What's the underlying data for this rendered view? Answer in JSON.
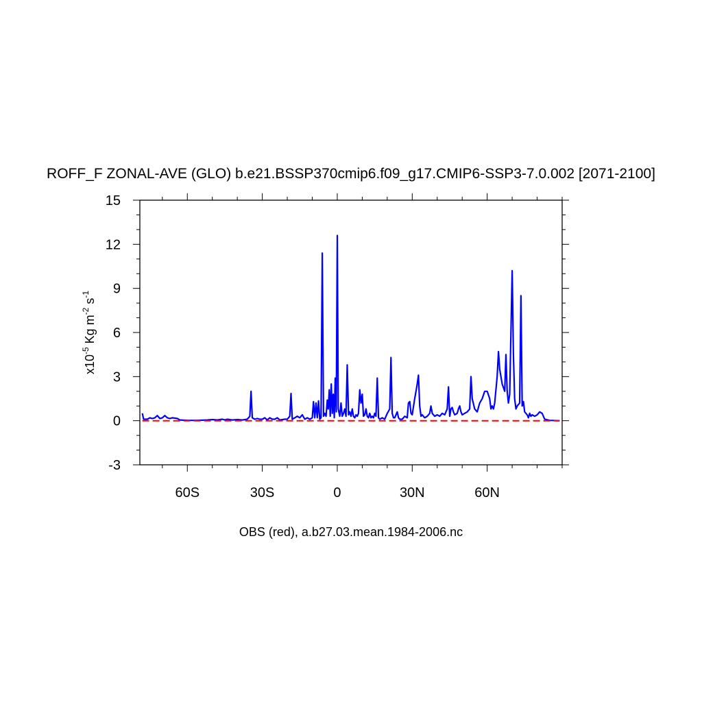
{
  "chart_data": {
    "type": "line",
    "title": "ROFF_F ZONAL-AVE (GLO) b.e21.BSSP370cmip6.f09_g17.CMIP6-SSP3-7.0.002 [2071-2100]",
    "caption": "OBS (red), a.b27.03.mean.1984-2006.nc",
    "ylabel": {
      "prefix": "x10",
      "exp1": "-5",
      "mid": " Kg m",
      "exp2": "-2",
      "mid2": " s",
      "exp3": "-1"
    },
    "xlim": [
      -79,
      90
    ],
    "ylim": [
      -3,
      15
    ],
    "y_ticks": [
      {
        "value": -3,
        "label": "-3"
      },
      {
        "value": 0,
        "label": "0"
      },
      {
        "value": 3,
        "label": "3"
      },
      {
        "value": 6,
        "label": "6"
      },
      {
        "value": 9,
        "label": "9"
      },
      {
        "value": 12,
        "label": "12"
      },
      {
        "value": 15,
        "label": "15"
      }
    ],
    "x_ticks": [
      {
        "value": -60,
        "label": "60S"
      },
      {
        "value": -30,
        "label": "30S"
      },
      {
        "value": 0,
        "label": "0"
      },
      {
        "value": 30,
        "label": "30N"
      },
      {
        "value": 60,
        "label": "60N"
      }
    ],
    "grid": false,
    "legend": "none",
    "series": [
      {
        "color": "#0000ff",
        "dash": false,
        "points": [
          [
            -78,
            0.5
          ],
          [
            -77.5,
            0.1
          ],
          [
            -76,
            0.1
          ],
          [
            -75,
            0.2
          ],
          [
            -74,
            0.15
          ],
          [
            -73,
            0.2
          ],
          [
            -72,
            0.35
          ],
          [
            -71,
            0.15
          ],
          [
            -70,
            0.2
          ],
          [
            -69,
            0.35
          ],
          [
            -68,
            0.2
          ],
          [
            -67,
            0.15
          ],
          [
            -66,
            0.2
          ],
          [
            -64,
            0.15
          ],
          [
            -63,
            0.05
          ],
          [
            -60,
            0.02
          ],
          [
            -56,
            0.02
          ],
          [
            -52,
            0.05
          ],
          [
            -50,
            0.08
          ],
          [
            -48,
            0.05
          ],
          [
            -46,
            0.1
          ],
          [
            -45,
            0.05
          ],
          [
            -44,
            0.1
          ],
          [
            -42,
            0.05
          ],
          [
            -40,
            0.08
          ],
          [
            -38,
            0.05
          ],
          [
            -36,
            0.1
          ],
          [
            -35,
            0.3
          ],
          [
            -34.5,
            2.0
          ],
          [
            -34,
            0.2
          ],
          [
            -33,
            0.1
          ],
          [
            -32,
            0.15
          ],
          [
            -31,
            0.1
          ],
          [
            -30,
            0.1
          ],
          [
            -29,
            0.2
          ],
          [
            -28,
            0.05
          ],
          [
            -27,
            0.2
          ],
          [
            -26,
            0.1
          ],
          [
            -25,
            0.1
          ],
          [
            -24,
            0.2
          ],
          [
            -23,
            0.05
          ],
          [
            -21,
            0.1
          ],
          [
            -20,
            0.1
          ],
          [
            -19,
            0.3
          ],
          [
            -18.5,
            1.85
          ],
          [
            -18,
            0.1
          ],
          [
            -17,
            0.2
          ],
          [
            -16,
            0.3
          ],
          [
            -15,
            0.2
          ],
          [
            -14,
            0.4
          ],
          [
            -13,
            0.1
          ],
          [
            -12,
            0.2
          ],
          [
            -11,
            0.1
          ],
          [
            -10,
            0.2
          ],
          [
            -9.5,
            1.3
          ],
          [
            -9,
            0.2
          ],
          [
            -8.5,
            1.2
          ],
          [
            -8,
            0.2
          ],
          [
            -7.5,
            1.35
          ],
          [
            -7,
            0.1
          ],
          [
            -6.5,
            0.2
          ],
          [
            -6,
            11.4
          ],
          [
            -5.5,
            0.3
          ],
          [
            -5,
            0.5
          ],
          [
            -4.5,
            0.3
          ],
          [
            -4,
            1.4
          ],
          [
            -3.6,
            0.8
          ],
          [
            -3.2,
            2.1
          ],
          [
            -2.8,
            0.3
          ],
          [
            -2.4,
            2.5
          ],
          [
            -2,
            0.5
          ],
          [
            -1.6,
            1.8
          ],
          [
            -1.2,
            0.2
          ],
          [
            -0.8,
            2.9
          ],
          [
            -0.4,
            0.6
          ],
          [
            0,
            12.6
          ],
          [
            0.4,
            0.8
          ],
          [
            1,
            0.3
          ],
          [
            1.5,
            1.2
          ],
          [
            2,
            0.3
          ],
          [
            2.5,
            0.5
          ],
          [
            3,
            0.8
          ],
          [
            3.5,
            0.3
          ],
          [
            4,
            3.8
          ],
          [
            4.5,
            0.4
          ],
          [
            5,
            0.6
          ],
          [
            5.5,
            0.3
          ],
          [
            6,
            0.8
          ],
          [
            6.5,
            0.3
          ],
          [
            7,
            0.2
          ],
          [
            7.5,
            0.4
          ],
          [
            8,
            0.3
          ],
          [
            8.5,
            0.5
          ],
          [
            9,
            2.1
          ],
          [
            9.5,
            1.2
          ],
          [
            10,
            1.8
          ],
          [
            10.5,
            0.3
          ],
          [
            11,
            0.4
          ],
          [
            11.5,
            0.8
          ],
          [
            12,
            0.3
          ],
          [
            12.5,
            0.2
          ],
          [
            13,
            0.5
          ],
          [
            13.5,
            0.2
          ],
          [
            14,
            0.3
          ],
          [
            14.5,
            0.2
          ],
          [
            15,
            0.5
          ],
          [
            15.5,
            0.3
          ],
          [
            16,
            2.9
          ],
          [
            16.5,
            0.2
          ],
          [
            17,
            0.1
          ],
          [
            18,
            0.2
          ],
          [
            19,
            0.1
          ],
          [
            20,
            0.5
          ],
          [
            21,
            0.8
          ],
          [
            21.5,
            4.3
          ],
          [
            22,
            0.5
          ],
          [
            22.5,
            0.2
          ],
          [
            23,
            0.2
          ],
          [
            24,
            0.6
          ],
          [
            24.5,
            0.2
          ],
          [
            25,
            0.1
          ],
          [
            26,
            0.1
          ],
          [
            27,
            0.3
          ],
          [
            28,
            0.2
          ],
          [
            28.5,
            1.2
          ],
          [
            29,
            1.3
          ],
          [
            29.5,
            0.5
          ],
          [
            30,
            0.4
          ],
          [
            31,
            1.5
          ],
          [
            31.5,
            2.0
          ],
          [
            32,
            2.5
          ],
          [
            32.5,
            3.1
          ],
          [
            33,
            1.0
          ],
          [
            33.5,
            0.3
          ],
          [
            34,
            0.4
          ],
          [
            35,
            0.2
          ],
          [
            36,
            0.3
          ],
          [
            37,
            0.5
          ],
          [
            37.5,
            1.0
          ],
          [
            38,
            0.5
          ],
          [
            39,
            0.3
          ],
          [
            40,
            0.4
          ],
          [
            41,
            0.3
          ],
          [
            42,
            0.5
          ],
          [
            43,
            0.4
          ],
          [
            44,
            0.8
          ],
          [
            44.5,
            2.3
          ],
          [
            45,
            0.3
          ],
          [
            45.5,
            0.8
          ],
          [
            46,
            0.9
          ],
          [
            46.5,
            0.6
          ],
          [
            47,
            0.4
          ],
          [
            48,
            0.5
          ],
          [
            48.5,
            0.8
          ],
          [
            49,
            1.0
          ],
          [
            49.5,
            0.6
          ],
          [
            50,
            0.4
          ],
          [
            51,
            0.5
          ],
          [
            52,
            0.6
          ],
          [
            53,
            0.8
          ],
          [
            53.5,
            3.0
          ],
          [
            54,
            1.5
          ],
          [
            55,
            0.8
          ],
          [
            56,
            0.6
          ],
          [
            57,
            1.2
          ],
          [
            58,
            1.5
          ],
          [
            59,
            2.0
          ],
          [
            60,
            2.0
          ],
          [
            61,
            1.5
          ],
          [
            61.5,
            0.8
          ],
          [
            62,
            1.0
          ],
          [
            62.5,
            0.8
          ],
          [
            63,
            1.2
          ],
          [
            64,
            3.0
          ],
          [
            64.5,
            4.7
          ],
          [
            65,
            3.5
          ],
          [
            66,
            2.5
          ],
          [
            67,
            2.0
          ],
          [
            67.5,
            4.5
          ],
          [
            68,
            2.0
          ],
          [
            68.5,
            1.2
          ],
          [
            69,
            1.8
          ],
          [
            70,
            10.2
          ],
          [
            70.5,
            4.5
          ],
          [
            71,
            1.5
          ],
          [
            71.5,
            0.8
          ],
          [
            72,
            1.0
          ],
          [
            73,
            1.2
          ],
          [
            73.5,
            8.5
          ],
          [
            74,
            1.0
          ],
          [
            74.5,
            1.3
          ],
          [
            75,
            0.6
          ],
          [
            76,
            0.4
          ],
          [
            76.5,
            0.2
          ],
          [
            77,
            0.5
          ],
          [
            77.5,
            0.3
          ],
          [
            78,
            0.4
          ],
          [
            79,
            0.3
          ],
          [
            80,
            0.4
          ],
          [
            81,
            0.6
          ],
          [
            82,
            0.5
          ],
          [
            83,
            0.1
          ],
          [
            85,
            0.02
          ],
          [
            89,
            0.0
          ]
        ]
      },
      {
        "color": "#ff0000",
        "dash": true,
        "points": [
          [
            -78,
            0.0
          ],
          [
            89,
            0.0
          ]
        ]
      }
    ]
  }
}
